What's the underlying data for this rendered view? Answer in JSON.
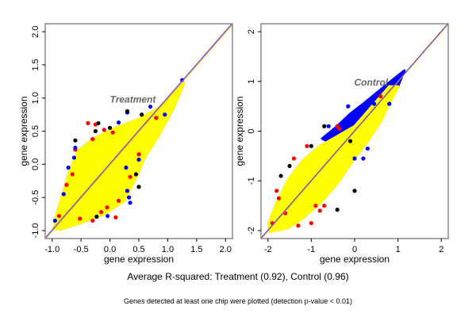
{
  "caption": "Average R-squared: Treatment (0.92), Control (0.96)",
  "footnote": "Genes detected at least one chip were plotted (detection p-value < 0.01)",
  "colors": {
    "cloud": "#ffff00",
    "red": "#ff0000",
    "blue": "#0000ff",
    "line_blue": "#4040ff",
    "line_orange": "#ff9900",
    "annotation": "#666666"
  },
  "chart_data": [
    {
      "type": "scatter",
      "annotation": {
        "text": "Treatment",
        "x": 0.0,
        "y": 0.98
      },
      "xlabel": "gene expression",
      "ylabel": "gene expression",
      "xlim": [
        -1.12,
        2.12
      ],
      "ylim": [
        -1.12,
        2.12
      ],
      "xticks": [
        "-1.0",
        "-0.5",
        "0.0",
        "0.5",
        "1.0",
        "1.5",
        "2.0"
      ],
      "yticks": [
        "-1.0",
        "-0.5",
        "0.0",
        "0.5",
        "1.0",
        "1.5",
        "2.0"
      ],
      "reference_line": "y = x",
      "dense_region": [
        [
          -0.97,
          -0.97
        ],
        [
          -0.85,
          -0.98
        ],
        [
          -0.5,
          -0.88
        ],
        [
          -0.1,
          -0.75
        ],
        [
          0.25,
          -0.55
        ],
        [
          0.45,
          -0.2
        ],
        [
          0.6,
          0.1
        ],
        [
          0.85,
          0.45
        ],
        [
          1.1,
          0.85
        ],
        [
          1.28,
          1.22
        ],
        [
          1.15,
          1.12
        ],
        [
          0.85,
          0.85
        ],
        [
          0.5,
          0.68
        ],
        [
          0.1,
          0.55
        ],
        [
          -0.3,
          0.38
        ],
        [
          -0.55,
          0.2
        ],
        [
          -0.7,
          -0.1
        ],
        [
          -0.8,
          -0.4
        ],
        [
          -0.92,
          -0.75
        ]
      ],
      "series": [
        {
          "color": "red",
          "points": [
            [
              -0.38,
              0.62
            ],
            [
              -0.25,
              0.6
            ],
            [
              -0.1,
              0.52
            ],
            [
              0.05,
              0.48
            ],
            [
              -0.6,
              0.22
            ],
            [
              -0.65,
              -0.15
            ],
            [
              -0.75,
              -0.31
            ],
            [
              -0.88,
              -0.78
            ],
            [
              0.1,
              -0.8
            ],
            [
              -0.3,
              -0.85
            ],
            [
              -0.15,
              -0.72
            ],
            [
              0.35,
              -0.19
            ],
            [
              0.5,
              0.15
            ],
            [
              0.15,
              -0.55
            ],
            [
              -0.05,
              -0.65
            ],
            [
              0.8,
              0.7
            ],
            [
              -0.52,
              -0.82
            ],
            [
              -0.3,
              0.38
            ]
          ]
        },
        {
          "color": "blue",
          "points": [
            [
              0.3,
              0.78
            ],
            [
              0.15,
              0.63
            ],
            [
              -0.6,
              0.25
            ],
            [
              -0.62,
              0.1
            ],
            [
              -0.8,
              -0.45
            ],
            [
              -0.95,
              -0.85
            ],
            [
              0.35,
              -0.58
            ],
            [
              0.33,
              -0.5
            ],
            [
              0.28,
              -0.05
            ],
            [
              0.5,
              0.07
            ],
            [
              0.95,
              0.75
            ],
            [
              0.7,
              0.87
            ],
            [
              1.25,
              1.27
            ],
            [
              -0.04,
              -0.78
            ],
            [
              0.3,
              -0.4
            ],
            [
              -0.72,
              -0.05
            ]
          ]
        },
        {
          "color": "yellow",
          "points": [
            [
              -0.2,
              0.62
            ],
            [
              -0.25,
              0.5
            ],
            [
              0.5,
              -0.34
            ],
            [
              -0.23,
              -0.79
            ],
            [
              0.45,
              -0.15
            ],
            [
              0.0,
              0.55
            ],
            [
              -0.6,
              0.36
            ],
            [
              0.3,
              0.8
            ],
            [
              0.55,
              0.75
            ]
          ]
        }
      ]
    },
    {
      "type": "scatter",
      "annotation": {
        "text": "Control",
        "x": -0.01,
        "y": 0.98
      },
      "xlabel": "gene expression",
      "ylabel": "gene expression",
      "xlim": [
        -2.16,
        2.16
      ],
      "ylim": [
        -2.16,
        2.16
      ],
      "xticks": [
        "-2",
        "-1",
        "0",
        "1",
        "2"
      ],
      "yticks": [
        "-2",
        "-1",
        "0",
        "1",
        "2"
      ],
      "reference_line": "y = x",
      "blue_region": [
        [
          -0.75,
          -0.15
        ],
        [
          -0.4,
          0.1
        ],
        [
          -0.1,
          0.35
        ],
        [
          0.2,
          0.55
        ],
        [
          0.55,
          0.8
        ],
        [
          0.9,
          1.05
        ],
        [
          1.15,
          1.22
        ],
        [
          1.0,
          0.9
        ],
        [
          0.6,
          0.45
        ],
        [
          0.3,
          -0.1
        ],
        [
          0.0,
          -0.35
        ],
        [
          -0.4,
          -0.3
        ]
      ],
      "dense_region": [
        [
          -1.95,
          -2.02
        ],
        [
          -1.55,
          -1.95
        ],
        [
          -1.2,
          -1.75
        ],
        [
          -0.8,
          -1.45
        ],
        [
          -0.4,
          -1.05
        ],
        [
          -0.05,
          -0.6
        ],
        [
          0.3,
          -0.2
        ],
        [
          0.6,
          0.2
        ],
        [
          1.0,
          0.9
        ],
        [
          0.8,
          0.9
        ],
        [
          0.4,
          0.5
        ],
        [
          0.0,
          0.1
        ],
        [
          -0.4,
          -0.1
        ],
        [
          -0.8,
          -0.3
        ],
        [
          -1.2,
          -0.6
        ],
        [
          -1.55,
          -1.0
        ],
        [
          -1.8,
          -1.45
        ],
        [
          -1.98,
          -1.85
        ]
      ],
      "series": [
        {
          "color": "red",
          "points": [
            [
              -1.1,
              -0.3
            ],
            [
              -1.4,
              -0.55
            ],
            [
              -1.8,
              -1.2
            ],
            [
              -1.75,
              -1.35
            ],
            [
              -1.6,
              -1.65
            ],
            [
              -1.9,
              -1.85
            ],
            [
              -1.0,
              -1.85
            ],
            [
              -0.8,
              -1.6
            ],
            [
              -0.7,
              -1.5
            ],
            [
              -0.4,
              0.1
            ],
            [
              -0.35,
              0.05
            ],
            [
              0.6,
              0.7
            ],
            [
              -0.9,
              -1.5
            ],
            [
              -1.3,
              -1.9
            ]
          ]
        },
        {
          "color": "blue",
          "points": [
            [
              -0.15,
              0.5
            ],
            [
              -0.6,
              0.1
            ],
            [
              0.8,
              0.55
            ],
            [
              0.3,
              -0.35
            ],
            [
              0.0,
              -0.55
            ],
            [
              0.2,
              -0.55
            ],
            [
              0.45,
              0.55
            ]
          ]
        },
        {
          "color": "yellow",
          "points": [
            [
              -0.7,
              0.1
            ],
            [
              0.0,
              -1.2
            ],
            [
              -0.4,
              -1.58
            ],
            [
              -1.0,
              -0.3
            ],
            [
              -0.1,
              -0.2
            ],
            [
              -1.7,
              -0.9
            ],
            [
              -1.5,
              -0.7
            ]
          ]
        }
      ]
    }
  ]
}
